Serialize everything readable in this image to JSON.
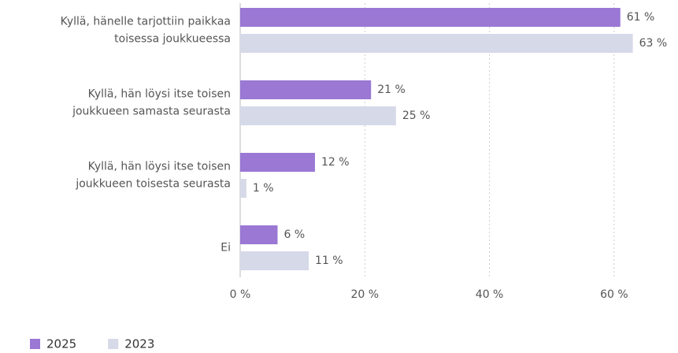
{
  "chart_data": {
    "type": "bar",
    "orientation": "horizontal",
    "categories": [
      "Kyllä, hänelle tarjottiin paikkaa\ntoisessa joukkueessa",
      "Kyllä, hän löysi itse toisen\njoukkueen samasta seurasta",
      "Kyllä, hän löysi itse toisen\njoukkueen toisesta seurasta",
      "Ei"
    ],
    "series": [
      {
        "name": "2025",
        "color": "#9a78d4",
        "values": [
          61,
          21,
          12,
          6
        ],
        "value_labels": [
          "61 %",
          "21 %",
          "12 %",
          "6 %"
        ]
      },
      {
        "name": "2023",
        "color": "#d5d9e8",
        "values": [
          63,
          25,
          1,
          11
        ],
        "value_labels": [
          "63 %",
          "25 %",
          "1 %",
          "11 %"
        ]
      }
    ],
    "xlim": [
      0,
      70
    ],
    "xticks": [
      {
        "value": 0,
        "label": "0 %"
      },
      {
        "value": 20,
        "label": "20 %"
      },
      {
        "value": 40,
        "label": "40 %"
      },
      {
        "value": 60,
        "label": "60 %"
      }
    ],
    "grid": true,
    "legend": "bottom-left"
  }
}
